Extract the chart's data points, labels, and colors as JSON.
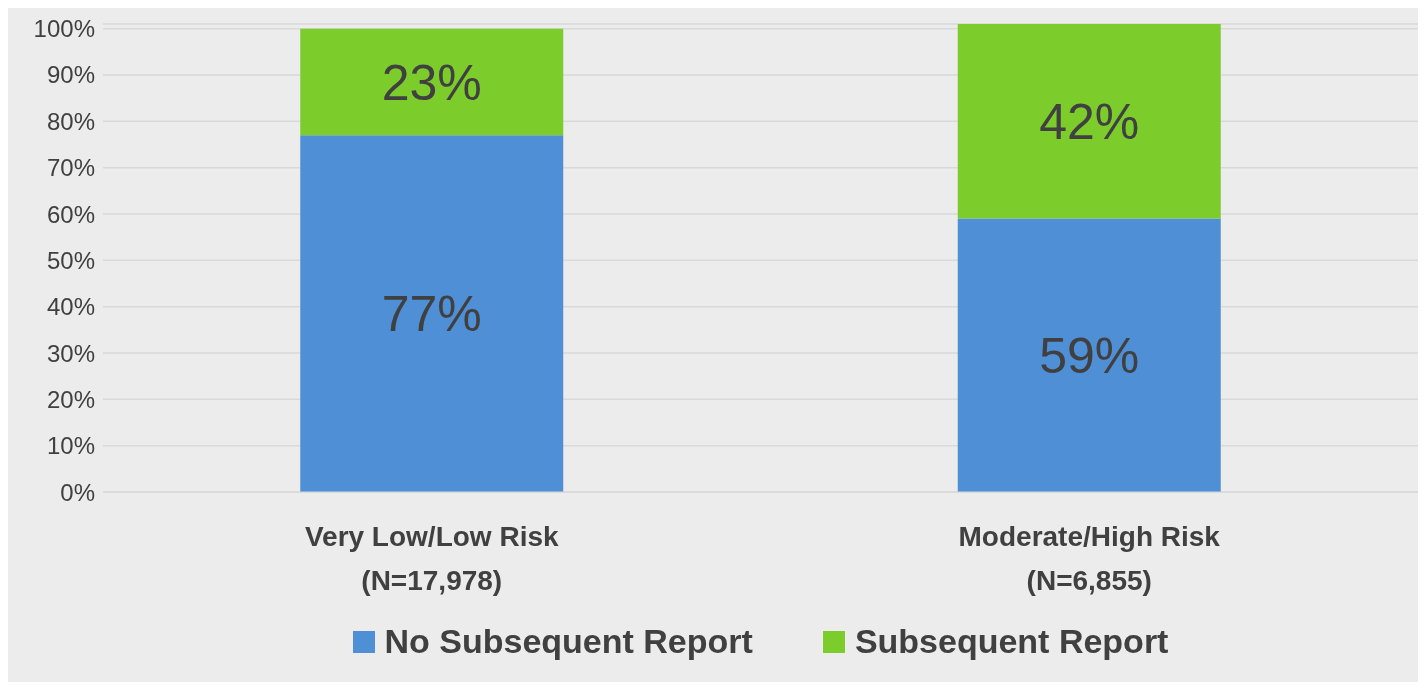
{
  "chart_data": {
    "type": "bar",
    "stacked": true,
    "categories": [
      "Very Low/Low Risk\n(N=17,978)",
      "Moderate/High Risk\n(N=6,855)"
    ],
    "series": [
      {
        "name": "No Subsequent Report",
        "color": "#4f8fd6",
        "values": [
          77,
          59
        ],
        "value_labels": [
          "77%",
          "59%"
        ]
      },
      {
        "name": "Subsequent Report",
        "color": "#7ccc2c",
        "values": [
          23,
          42
        ],
        "value_labels": [
          "23%",
          "42%"
        ]
      }
    ],
    "ylim": [
      0,
      101
    ],
    "yticks": [
      {
        "value": 0,
        "label": "0%"
      },
      {
        "value": 10,
        "label": "10%"
      },
      {
        "value": 20,
        "label": "20%"
      },
      {
        "value": 30,
        "label": "30%"
      },
      {
        "value": 40,
        "label": "40%"
      },
      {
        "value": 50,
        "label": "50%"
      },
      {
        "value": 60,
        "label": "60%"
      },
      {
        "value": 70,
        "label": "70%"
      },
      {
        "value": 80,
        "label": "80%"
      },
      {
        "value": 90,
        "label": "90%"
      },
      {
        "value": 100,
        "label": "100%"
      }
    ],
    "grid": "y",
    "legend": "bottom"
  }
}
